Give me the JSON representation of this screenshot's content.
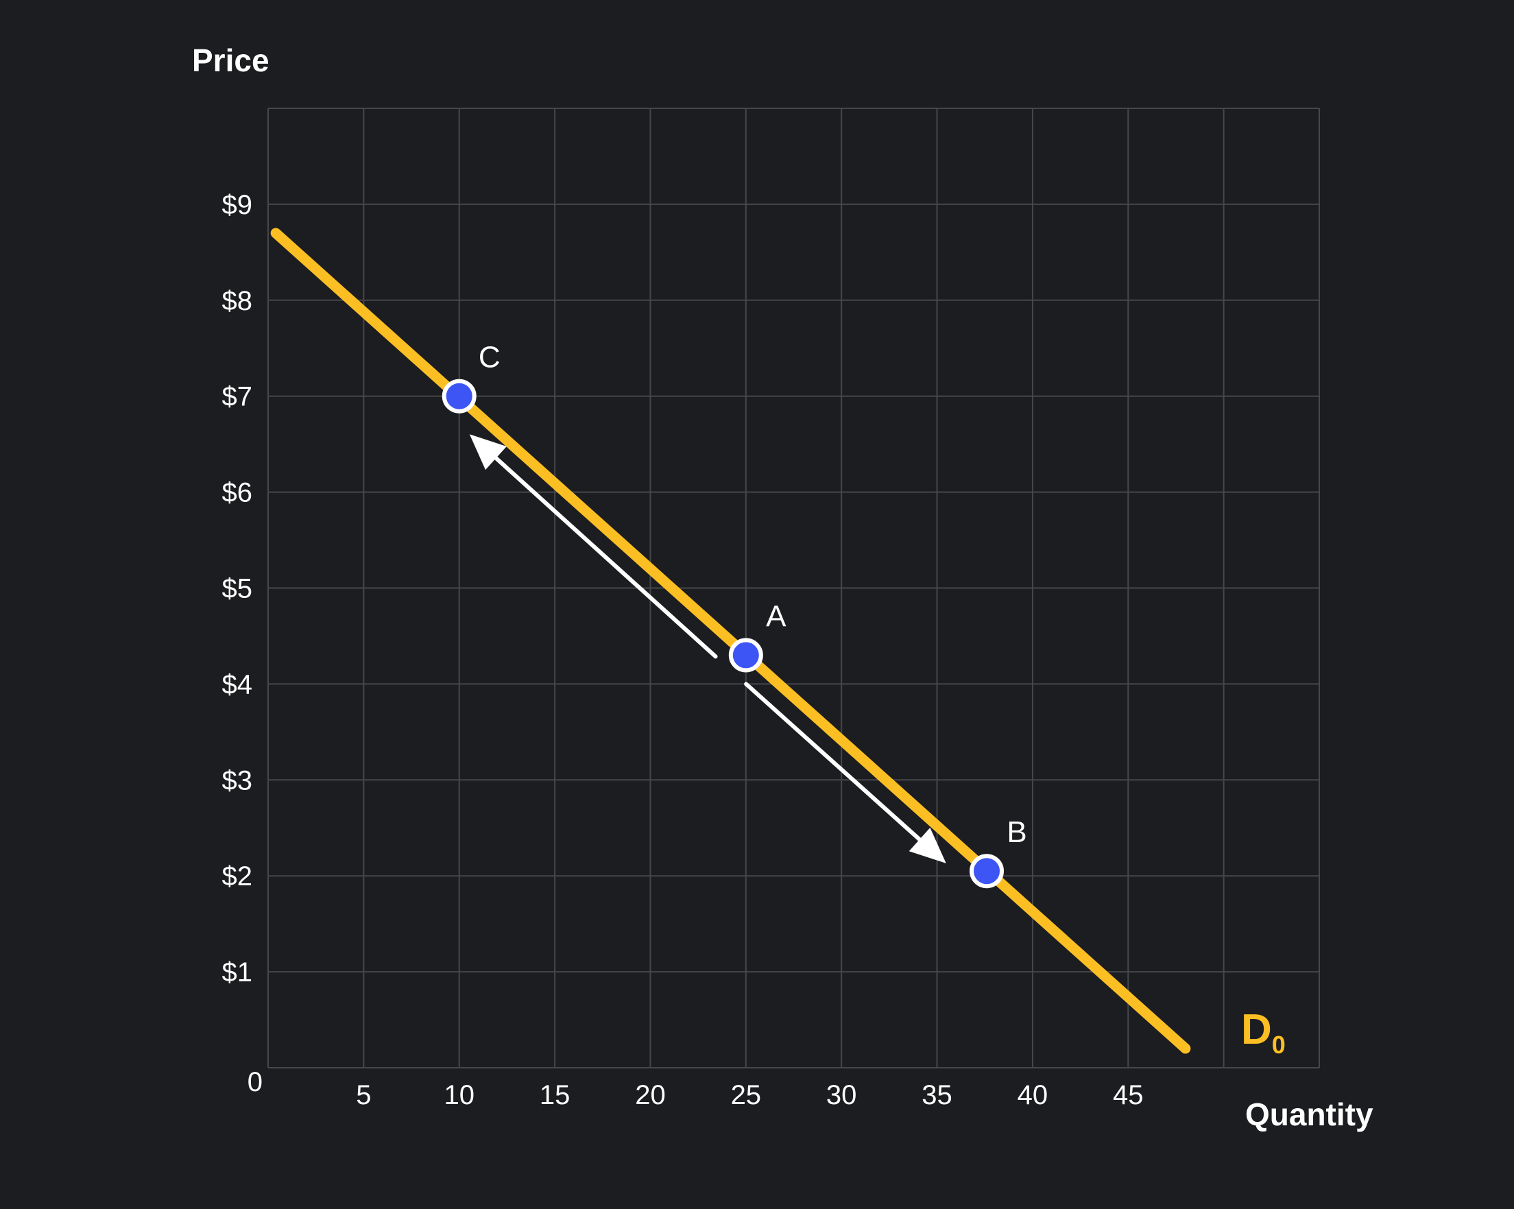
{
  "chart_data": {
    "type": "line",
    "title": "",
    "xlabel": "Quantity",
    "ylabel": "Price",
    "origin_label": "0",
    "xlim": [
      0,
      55
    ],
    "ylim": [
      0,
      10
    ],
    "x_ticks": [
      5,
      10,
      15,
      20,
      25,
      30,
      35,
      40,
      45
    ],
    "x_tick_labels": [
      "5",
      "10",
      "15",
      "20",
      "25",
      "30",
      "35",
      "40",
      "45"
    ],
    "y_ticks": [
      1,
      2,
      3,
      4,
      5,
      6,
      7,
      8,
      9
    ],
    "y_tick_labels": [
      "$1",
      "$2",
      "$3",
      "$4",
      "$5",
      "$6",
      "$7",
      "$8",
      "$9"
    ],
    "grid": true,
    "series": [
      {
        "name": "D0",
        "label_main": "D",
        "label_sub": "0",
        "x": [
          0.4,
          48
        ],
        "y": [
          8.7,
          0.2
        ]
      }
    ],
    "points": [
      {
        "label": "C",
        "x": 10,
        "y": 7
      },
      {
        "label": "A",
        "x": 25,
        "y": 4.3
      },
      {
        "label": "B",
        "x": 37.6,
        "y": 2.05
      }
    ],
    "arrows": [
      {
        "from": "A",
        "to": "C"
      },
      {
        "from": "A",
        "to": "B"
      }
    ]
  },
  "colors": {
    "background": "#1c1d20",
    "grid": "#45474b",
    "curve": "#fbbf24",
    "point_fill": "#3d55f5",
    "point_stroke": "#ffffff",
    "arrow": "#ffffff",
    "text": "#ffffff"
  }
}
